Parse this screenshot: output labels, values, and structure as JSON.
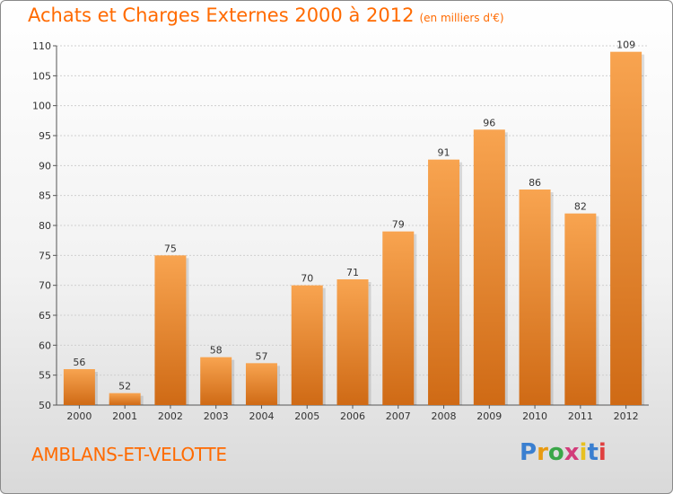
{
  "header": {
    "title": "Achats et Charges Externes 2000 à 2012",
    "unit": "(en milliers d'€)"
  },
  "footer": {
    "commune": "AMBLANS-ET-VELOTTE",
    "brand": "Proxiti"
  },
  "colors": {
    "accent": "#ff6a00",
    "bar_top": "#f8a450",
    "bar_bottom": "#cf6a15",
    "grid": "#d0d0d0"
  },
  "chart_data": {
    "type": "bar",
    "title": "Achats et Charges Externes 2000 à 2012",
    "subtitle": "(en milliers d'€)",
    "xlabel": "",
    "ylabel": "",
    "categories": [
      "2000",
      "2001",
      "2002",
      "2003",
      "2004",
      "2005",
      "2006",
      "2007",
      "2008",
      "2009",
      "2010",
      "2011",
      "2012"
    ],
    "values": [
      56,
      52,
      75,
      58,
      57,
      70,
      71,
      79,
      91,
      96,
      86,
      82,
      109
    ],
    "ylim": [
      50,
      110
    ],
    "yticks": [
      50,
      55,
      60,
      65,
      70,
      75,
      80,
      85,
      90,
      95,
      100,
      105,
      110
    ],
    "grid": true,
    "legend": "none"
  }
}
